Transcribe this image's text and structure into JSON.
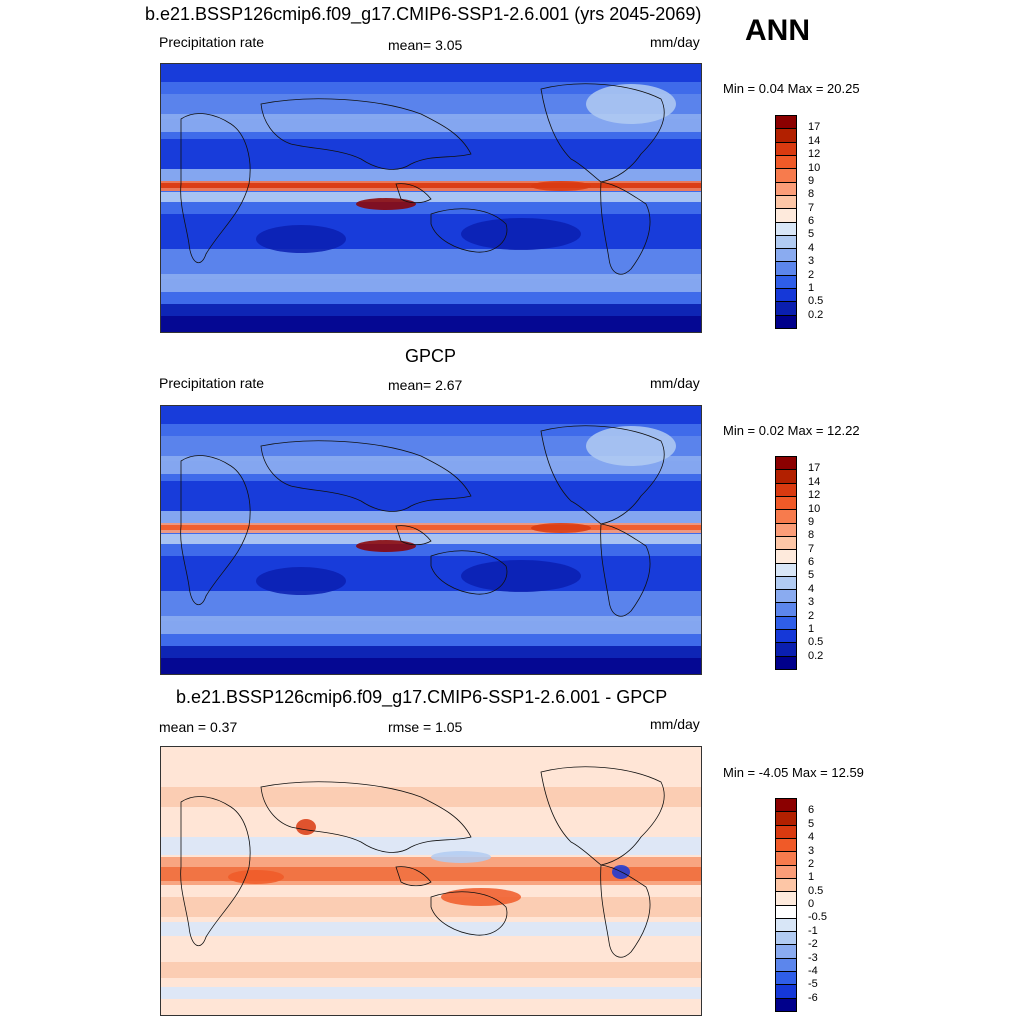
{
  "top_title": "b.e21.BSSP126cmip6.f09_g17.CMIP6-SSP1-2.6.001 (yrs 2045-2069)",
  "season": "ANN",
  "panels": [
    {
      "id": "model",
      "header": "",
      "left_label": "Precipitation rate",
      "center_label": "mean=   3.05",
      "right_label": "mm/day",
      "minmax": "Min =   0.04 Max =  20.25",
      "colorbar_labels": [
        "17",
        "14",
        "12",
        "10",
        "9",
        "8",
        "7",
        "6",
        "5",
        "4",
        "3",
        "2",
        "1",
        "0.5",
        "0.2"
      ],
      "colorbar_colors": [
        "#8b0000",
        "#b22000",
        "#d93a10",
        "#f05a28",
        "#f77b4d",
        "#fb9d78",
        "#fdc6a6",
        "#feeadc",
        "#d8e6f7",
        "#b1cbf2",
        "#8aabf0",
        "#5c86ec",
        "#2f5ee8",
        "#1538d8",
        "#0a1fb0",
        "#00008b"
      ]
    },
    {
      "id": "obs",
      "header": "GPCP",
      "left_label": "Precipitation rate",
      "center_label": "mean=   2.67",
      "right_label": "mm/day",
      "minmax": "Min =   0.02 Max =  12.22",
      "colorbar_labels": [
        "17",
        "14",
        "12",
        "10",
        "9",
        "8",
        "7",
        "6",
        "5",
        "4",
        "3",
        "2",
        "1",
        "0.5",
        "0.2"
      ],
      "colorbar_colors": [
        "#8b0000",
        "#b22000",
        "#d93a10",
        "#f05a28",
        "#f77b4d",
        "#fb9d78",
        "#fdc6a6",
        "#feeadc",
        "#d8e6f7",
        "#b1cbf2",
        "#8aabf0",
        "#5c86ec",
        "#2f5ee8",
        "#1538d8",
        "#0a1fb0",
        "#00008b"
      ]
    },
    {
      "id": "diff",
      "header": "b.e21.BSSP126cmip6.f09_g17.CMIP6-SSP1-2.6.001 - GPCP",
      "left_label": "mean =   0.37",
      "center_label": "rmse =   1.05",
      "right_label": "mm/day",
      "minmax": "Min =  -4.05 Max =  12.59",
      "colorbar_labels": [
        "6",
        "5",
        "4",
        "3",
        "2",
        "1",
        "0.5",
        "0",
        "-0.5",
        "-1",
        "-2",
        "-3",
        "-4",
        "-5",
        "-6"
      ],
      "colorbar_colors": [
        "#8b0000",
        "#b22000",
        "#d93a10",
        "#f05a28",
        "#f77b4d",
        "#fb9d78",
        "#fdc6a6",
        "#feeadc",
        "#ffffff",
        "#d8e6f7",
        "#b1cbf2",
        "#8aabf0",
        "#5c86ec",
        "#2f5ee8",
        "#1538d8",
        "#00008b"
      ]
    }
  ]
}
